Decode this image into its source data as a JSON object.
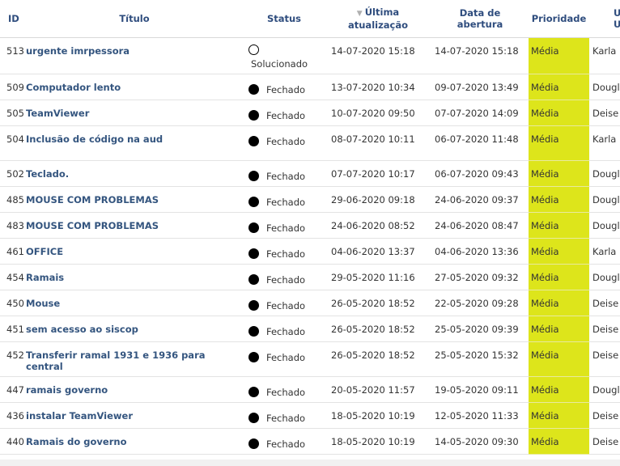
{
  "headers": {
    "id": "ID",
    "title": "Título",
    "status": "Status",
    "last_update_line1": "Última",
    "last_update_line2": "atualização",
    "opened_line1": "Data de",
    "opened_line2": "abertura",
    "priority": "Prioridade",
    "user_line1": "U",
    "user_line2": "U"
  },
  "sort_indicator": "▼",
  "colors": {
    "priority_bg": "#dde51b",
    "link": "#34557f",
    "header": "#2f4d7e"
  },
  "tickets": [
    {
      "id": "513",
      "title": "urgente imrpessora",
      "status": "Solucionado",
      "status_icon": "solved",
      "last_update": "14-07-2020 15:18",
      "opened": "14-07-2020 15:18",
      "priority": "Média",
      "user": "Karla"
    },
    {
      "id": "509",
      "title": "Computador lento",
      "status": "Fechado",
      "status_icon": "closed",
      "last_update": "13-07-2020 10:34",
      "opened": "09-07-2020 13:49",
      "priority": "Média",
      "user": "Dougl"
    },
    {
      "id": "505",
      "title": "TeamViewer",
      "status": "Fechado",
      "status_icon": "closed",
      "last_update": "10-07-2020 09:50",
      "opened": "07-07-2020 14:09",
      "priority": "Média",
      "user": "Deise"
    },
    {
      "id": "504",
      "title": "Inclusão de código na aud",
      "status": "Fechado",
      "status_icon": "closed",
      "last_update": "08-07-2020 10:11",
      "opened": "06-07-2020 11:48",
      "priority": "Média",
      "user": "Karla"
    },
    {
      "id": "502",
      "title": "Teclado.",
      "status": "Fechado",
      "status_icon": "closed",
      "last_update": "07-07-2020 10:17",
      "opened": "06-07-2020 09:43",
      "priority": "Média",
      "user": "Dougl"
    },
    {
      "id": "485",
      "title": "MOUSE COM PROBLEMAS",
      "status": "Fechado",
      "status_icon": "closed",
      "last_update": "29-06-2020 09:18",
      "opened": "24-06-2020 09:37",
      "priority": "Média",
      "user": "Dougl"
    },
    {
      "id": "483",
      "title": "MOUSE COM PROBLEMAS",
      "status": "Fechado",
      "status_icon": "closed",
      "last_update": "24-06-2020 08:52",
      "opened": "24-06-2020 08:47",
      "priority": "Média",
      "user": "Dougl"
    },
    {
      "id": "461",
      "title": "OFFICE",
      "status": "Fechado",
      "status_icon": "closed",
      "last_update": "04-06-2020 13:37",
      "opened": "04-06-2020 13:36",
      "priority": "Média",
      "user": "Karla"
    },
    {
      "id": "454",
      "title": "Ramais",
      "status": "Fechado",
      "status_icon": "closed",
      "last_update": "29-05-2020 11:16",
      "opened": "27-05-2020 09:32",
      "priority": "Média",
      "user": "Dougl"
    },
    {
      "id": "450",
      "title": "Mouse",
      "status": "Fechado",
      "status_icon": "closed",
      "last_update": "26-05-2020 18:52",
      "opened": "22-05-2020 09:28",
      "priority": "Média",
      "user": "Deise"
    },
    {
      "id": "451",
      "title": "sem acesso ao siscop",
      "status": "Fechado",
      "status_icon": "closed",
      "last_update": "26-05-2020 18:52",
      "opened": "25-05-2020 09:39",
      "priority": "Média",
      "user": "Deise"
    },
    {
      "id": "452",
      "title": "Transferir ramal 1931 e 1936 para central",
      "status": "Fechado",
      "status_icon": "closed",
      "last_update": "26-05-2020 18:52",
      "opened": "25-05-2020 15:32",
      "priority": "Média",
      "user": "Deise"
    },
    {
      "id": "447",
      "title": "ramais governo",
      "status": "Fechado",
      "status_icon": "closed",
      "last_update": "20-05-2020 11:57",
      "opened": "19-05-2020 09:11",
      "priority": "Média",
      "user": "Dougl"
    },
    {
      "id": "436",
      "title": "instalar TeamViewer",
      "status": "Fechado",
      "status_icon": "closed",
      "last_update": "18-05-2020 10:19",
      "opened": "12-05-2020 11:33",
      "priority": "Média",
      "user": "Deise"
    },
    {
      "id": "440",
      "title": "Ramais do governo",
      "status": "Fechado",
      "status_icon": "closed",
      "last_update": "18-05-2020 10:19",
      "opened": "14-05-2020 09:30",
      "priority": "Média",
      "user": "Deise"
    }
  ]
}
